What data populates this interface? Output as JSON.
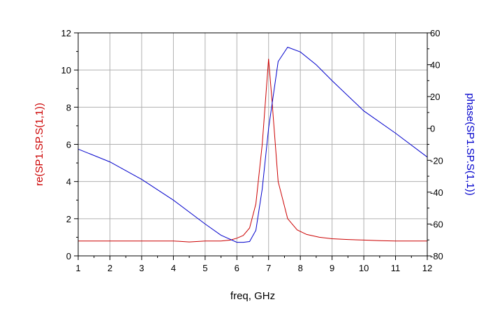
{
  "chart_data": {
    "type": "line",
    "xlabel": "freq, GHz",
    "ylabel_left": "re(SP1.SP.S(1,1))",
    "ylabel_right": "phase(SP1.SP.S(1,1))",
    "xlim": [
      1,
      12
    ],
    "ylim_left": [
      0,
      12
    ],
    "ylim_right": [
      -80,
      60
    ],
    "x_ticks": [
      1,
      2,
      3,
      4,
      5,
      6,
      7,
      8,
      9,
      10,
      11,
      12
    ],
    "y_ticks_left": [
      0,
      2,
      4,
      6,
      8,
      10,
      12
    ],
    "y_ticks_right": [
      -80,
      -60,
      -40,
      -20,
      0,
      20,
      40,
      60
    ],
    "grid": true,
    "colors": {
      "left_series": "#cc0000",
      "right_series": "#0000cc",
      "grid": "#b0b0b0",
      "axis": "#000000"
    },
    "series": [
      {
        "axis": "left",
        "color": "#cc0000",
        "x": [
          1.0,
          1.5,
          2.0,
          2.5,
          3.0,
          3.5,
          4.0,
          4.5,
          5.0,
          5.5,
          5.8,
          6.0,
          6.2,
          6.4,
          6.6,
          6.8,
          7.0,
          7.1,
          7.3,
          7.6,
          7.9,
          8.2,
          8.6,
          9.0,
          9.5,
          10.0,
          10.5,
          11.0,
          11.5,
          12.0
        ],
        "values": [
          0.8,
          0.8,
          0.8,
          0.8,
          0.8,
          0.8,
          0.8,
          0.75,
          0.8,
          0.8,
          0.85,
          0.95,
          1.1,
          1.5,
          2.8,
          6.0,
          10.6,
          8.5,
          4.0,
          2.0,
          1.4,
          1.15,
          1.0,
          0.92,
          0.88,
          0.85,
          0.82,
          0.8,
          0.8,
          0.8
        ]
      },
      {
        "axis": "right",
        "color": "#0000cc",
        "x": [
          1.0,
          2.0,
          3.0,
          4.0,
          5.0,
          5.5,
          6.0,
          6.2,
          6.4,
          6.6,
          6.8,
          7.0,
          7.3,
          7.6,
          8.0,
          8.5,
          9.0,
          10.0,
          11.0,
          12.0
        ],
        "values": [
          -13,
          -21,
          -32,
          -45,
          -60,
          -67,
          -71.5,
          -71.5,
          -71,
          -64,
          -38,
          0,
          42,
          51,
          48,
          40,
          30,
          11,
          -3,
          -18
        ]
      }
    ]
  }
}
